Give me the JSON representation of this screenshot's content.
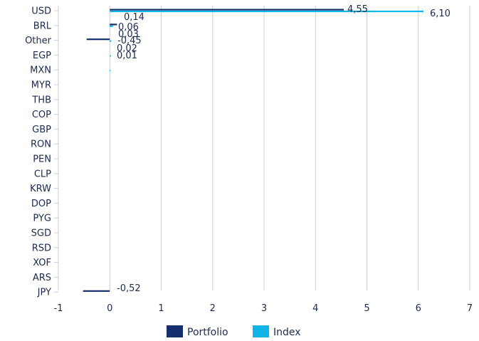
{
  "chart_data": {
    "type": "bar",
    "orientation": "horizontal",
    "categories": [
      "USD",
      "BRL",
      "Other",
      "EGP",
      "MXN",
      "MYR",
      "THB",
      "COP",
      "GBP",
      "RON",
      "PEN",
      "CLP",
      "KRW",
      "DOP",
      "PYG",
      "SGD",
      "RSD",
      "XOF",
      "ARS",
      "JPY"
    ],
    "series": [
      {
        "name": "Portfolio",
        "color": "#142f6b",
        "values": [
          4.55,
          0.14,
          -0.45,
          null,
          null,
          null,
          null,
          null,
          null,
          null,
          null,
          null,
          null,
          null,
          null,
          null,
          null,
          null,
          null,
          -0.52
        ],
        "labels": [
          "4,55",
          "0,14",
          "-0,45",
          "",
          "",
          "",
          "",
          "",
          "",
          "",
          "",
          "",
          "",
          "",
          "",
          "",
          "",
          "",
          "",
          "-0,52"
        ]
      },
      {
        "name": "Index",
        "color": "#10b4e6",
        "values": [
          6.1,
          0.06,
          0.03,
          0.02,
          0.01,
          null,
          null,
          null,
          null,
          null,
          null,
          null,
          null,
          null,
          null,
          null,
          null,
          null,
          null,
          null
        ],
        "labels": [
          "6,10",
          "0,06",
          "0,03",
          "0,02",
          "0,01",
          "",
          "",
          "",
          "",
          "",
          "",
          "",
          "",
          "",
          "",
          "",
          "",
          "",
          "",
          ""
        ]
      }
    ],
    "x_ticks": [
      "-1",
      "0",
      "1",
      "2",
      "3",
      "4",
      "5",
      "6",
      "7"
    ],
    "xlim": [
      -1,
      7
    ],
    "grid": "vertical",
    "legend": "bottom"
  }
}
